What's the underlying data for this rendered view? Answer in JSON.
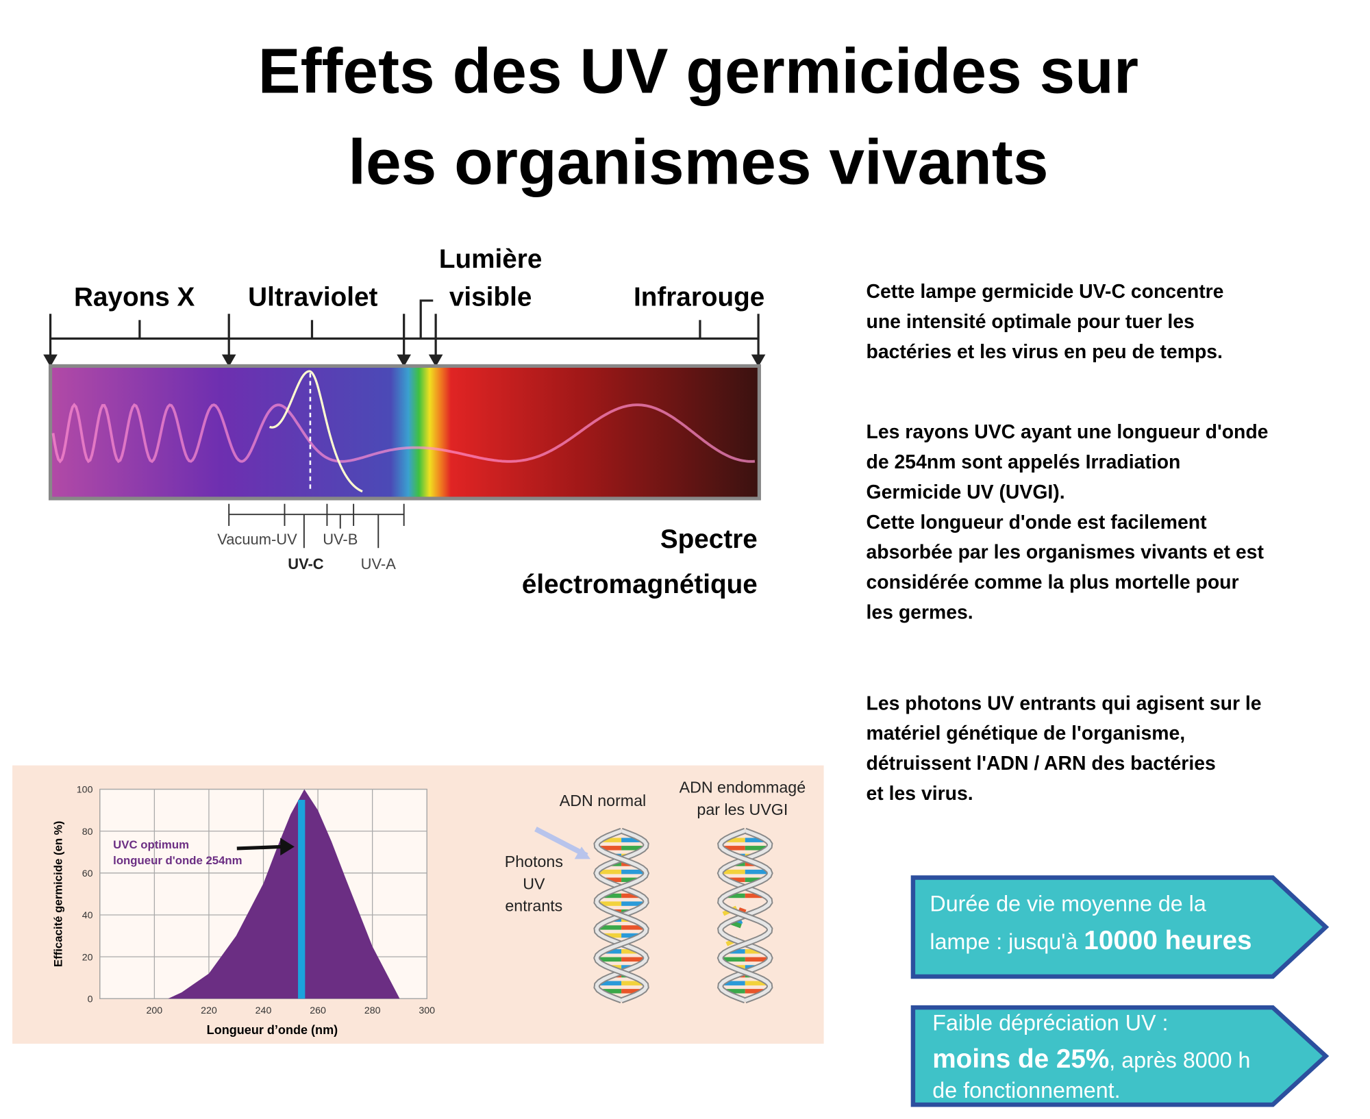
{
  "title": [
    "Effets des UV germicides sur",
    "les organismes vivants"
  ],
  "spectrum": {
    "xray": "Rayons X",
    "uv": "Ultraviolet",
    "visible": [
      "Lumière",
      "visible"
    ],
    "ir": "Infrarouge",
    "vacuum": "Vacuum-UV",
    "uvb": "UV-B",
    "uvc": "UV-C",
    "uva": "UV-A",
    "caption": [
      "Spectre",
      "électromagnétique"
    ]
  },
  "paragraphs": [
    [
      "Cette lampe germicide UV-C concentre",
      "une intensité optimale pour tuer les",
      "bactéries et les virus en peu de temps."
    ],
    [
      "Les rayons UVC ayant une longueur d'onde",
      "de 254nm sont appelés Irradiation",
      "Germicide UV (UVGI).",
      "Cette longueur d'onde est facilement",
      "absorbée par les organismes vivants et est",
      "considérée comme la plus mortelle pour",
      "les germes."
    ],
    [
      "Les photons UV entrants qui agisent sur le",
      "matériel génétique de l'organisme,",
      "détruissent l'ADN / ARN des bactéries",
      "et les virus."
    ]
  ],
  "chart_data": {
    "type": "area",
    "ylabel": "Efficacité germicide (en %)",
    "xlabel": "Longueur d’onde (nm)",
    "annotation": [
      "UVC optimum",
      "longueur d'onde 254nm"
    ],
    "optimum_x": 254,
    "x": [
      205,
      210,
      220,
      230,
      240,
      245,
      250,
      255,
      260,
      265,
      270,
      280,
      290
    ],
    "values": [
      0,
      3,
      12,
      30,
      55,
      72,
      88,
      100,
      90,
      75,
      58,
      25,
      0
    ],
    "xlim": [
      180,
      300
    ],
    "ylim": [
      0,
      100
    ],
    "xticks": [
      200,
      220,
      240,
      260,
      280,
      300
    ],
    "yticks": [
      0,
      20,
      40,
      60,
      80,
      100
    ],
    "color": "#6b2e83",
    "grid": true
  },
  "dna": {
    "normal": "ADN normal",
    "damaged": [
      "ADN endommagé",
      "par les UVGI"
    ],
    "photons": [
      "Photons",
      "UV",
      "entrants"
    ]
  },
  "badges": [
    {
      "line1": "Durée de vie moyenne de la",
      "line2": "lampe : jusqu'à",
      "strong": "10000 heures"
    },
    {
      "line1": "Faible dépréciation UV :",
      "strong": "moins de 25%",
      "line2": ", après 8000 h",
      "line3": "de fonctionnement."
    }
  ]
}
